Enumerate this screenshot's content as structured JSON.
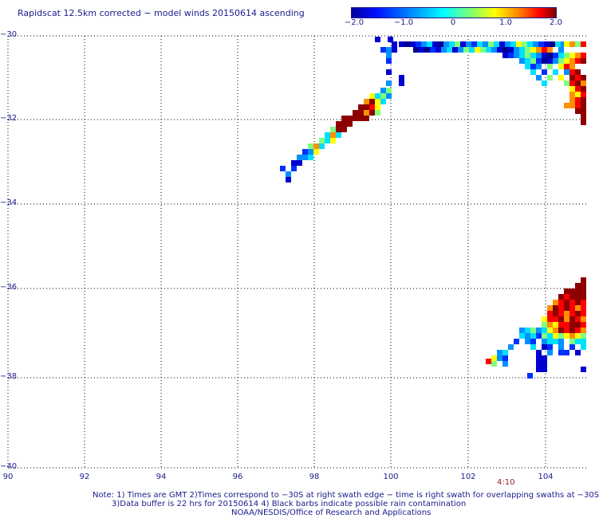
{
  "title": "Rapidscat 12.5km corrected − model winds 20150614 ascending",
  "colorbar": {
    "ticks": [
      "−2.0",
      "−1.0",
      "0",
      "1.0",
      "2.0"
    ],
    "range": [
      -2.0,
      2.0
    ]
  },
  "axes": {
    "y_labels": [
      "−30",
      "−32",
      "−34",
      "−36",
      "−38",
      "−40"
    ],
    "x_labels": [
      "90",
      "92",
      "94",
      "96",
      "98",
      "100",
      "102",
      "104"
    ],
    "lat_range": [
      -40,
      -30
    ],
    "lon_range": [
      90,
      105.3
    ]
  },
  "time_label": "4:10",
  "notes": {
    "line1": "Note: 1) Times are GMT 2)Times correspond to −30S at right swath edge − time is right swath for overlapping swaths at −30S",
    "line2": "3)Data buffer is 22 hrs for 20150614 4) Black barbs indicate possible rain contamination",
    "line3": "NOAA/NESDIS/Office of Research and Applications"
  },
  "colors": {
    "text": "#1a1a8c",
    "grid": "#000000",
    "time_label": "#9a2020"
  }
}
